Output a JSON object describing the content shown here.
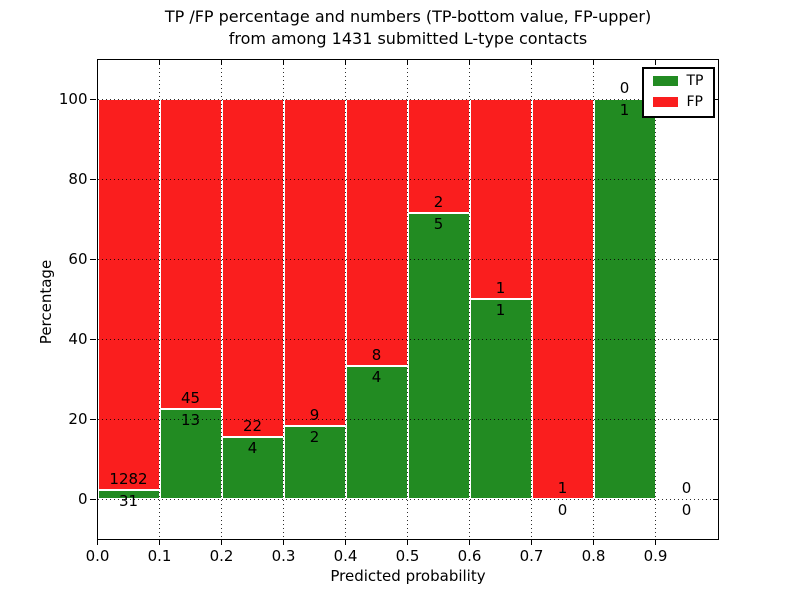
{
  "chart_data": {
    "type": "bar",
    "stacked": true,
    "title_line1": "TP /FP percentage and numbers (TP-bottom value, FP-upper)",
    "title_line2": "from among 1431 submitted L-type contacts",
    "xlabel": "Predicted probability",
    "ylabel": "Percentage",
    "xlim": [
      0.0,
      1.0
    ],
    "ylim": [
      -10,
      110
    ],
    "xticks": [
      0.0,
      0.1,
      0.2,
      0.3,
      0.4,
      0.5,
      0.6,
      0.7,
      0.8,
      0.9
    ],
    "xtick_labels": [
      "0.0",
      "0.1",
      "0.2",
      "0.3",
      "0.4",
      "0.5",
      "0.6",
      "0.7",
      "0.8",
      "0.9"
    ],
    "yticks": [
      0,
      20,
      40,
      60,
      80,
      100
    ],
    "ytick_labels": [
      "0",
      "20",
      "40",
      "60",
      "80",
      "100"
    ],
    "grid": "dotted",
    "bin_width": 0.1,
    "categories": [
      "0.0-0.1",
      "0.1-0.2",
      "0.2-0.3",
      "0.3-0.4",
      "0.4-0.5",
      "0.5-0.6",
      "0.6-0.7",
      "0.7-0.8",
      "0.8-0.9",
      "0.9-1.0"
    ],
    "series": [
      {
        "name": "TP",
        "counts": [
          31,
          13,
          4,
          2,
          4,
          5,
          1,
          0,
          1,
          0
        ],
        "pct": [
          2.36,
          22.41,
          15.38,
          18.18,
          33.33,
          71.43,
          50.0,
          0.0,
          100.0,
          0.0
        ]
      },
      {
        "name": "FP",
        "counts": [
          1282,
          45,
          22,
          9,
          8,
          2,
          1,
          1,
          0,
          0
        ],
        "pct": [
          97.64,
          77.59,
          84.62,
          81.82,
          66.67,
          28.57,
          50.0,
          100.0,
          0.0,
          0.0
        ]
      }
    ],
    "colors": {
      "tp": "#228B22",
      "fp": "#FA1E1E",
      "bar_edge": "#ffffff",
      "frame": "#000000"
    },
    "legend": {
      "position": "upper right",
      "entries": [
        {
          "label": "TP",
          "color_key": "tp"
        },
        {
          "label": "FP",
          "color_key": "fp"
        }
      ]
    }
  }
}
